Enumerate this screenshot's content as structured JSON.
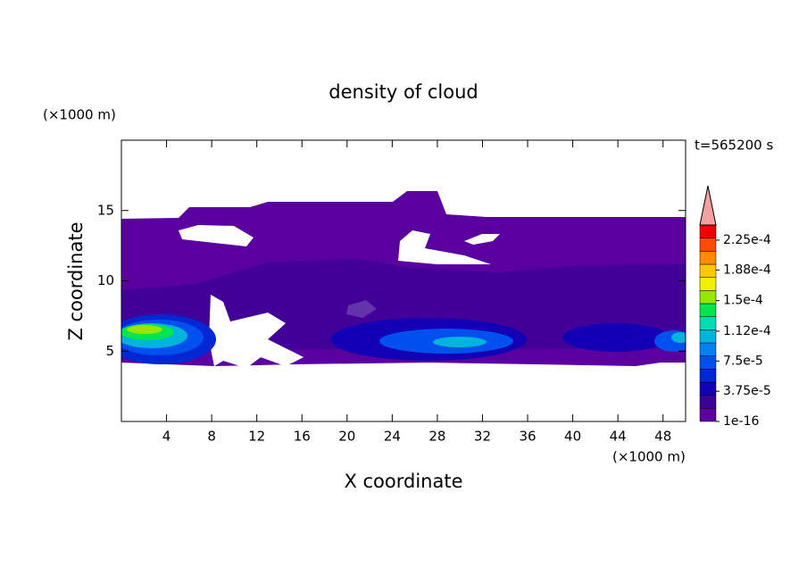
{
  "chart_data": {
    "type": "contour",
    "title": "density of cloud",
    "xlabel": "X coordinate",
    "ylabel": "Z coordinate",
    "x_unit": "(×1000 m)",
    "y_unit": "(×1000 m)",
    "time_label": "t=565200 s",
    "xlim": [
      0,
      50
    ],
    "xticks": [
      4,
      8,
      12,
      16,
      20,
      24,
      28,
      32,
      36,
      40,
      44,
      48
    ],
    "ylim": [
      0,
      20
    ],
    "yticks": [
      5,
      10,
      15
    ],
    "colorbar": {
      "lim": [
        0,
        0.00024375
      ],
      "colors": [
        "#5a00a0",
        "#3c0096",
        "#1400b4",
        "#0028d2",
        "#0050f0",
        "#0082f0",
        "#00b4dc",
        "#00dcb4",
        "#00e650",
        "#96e600",
        "#f0f000",
        "#ffc800",
        "#ff8c00",
        "#ff4b00",
        "#f00000"
      ],
      "ticks": [
        {
          "value": 1e-16,
          "label": "1e-16"
        },
        {
          "value": 3.75e-05,
          "label": "3.75e-5"
        },
        {
          "value": 7.5e-05,
          "label": "7.5e-5"
        },
        {
          "value": 0.000112,
          "label": "1.12e-4"
        },
        {
          "value": 0.00015,
          "label": "1.5e-4"
        },
        {
          "value": 0.000188,
          "label": "1.88e-4"
        },
        {
          "value": 0.000225,
          "label": "2.25e-4"
        }
      ],
      "extend_color": "#f4a0a0"
    }
  }
}
